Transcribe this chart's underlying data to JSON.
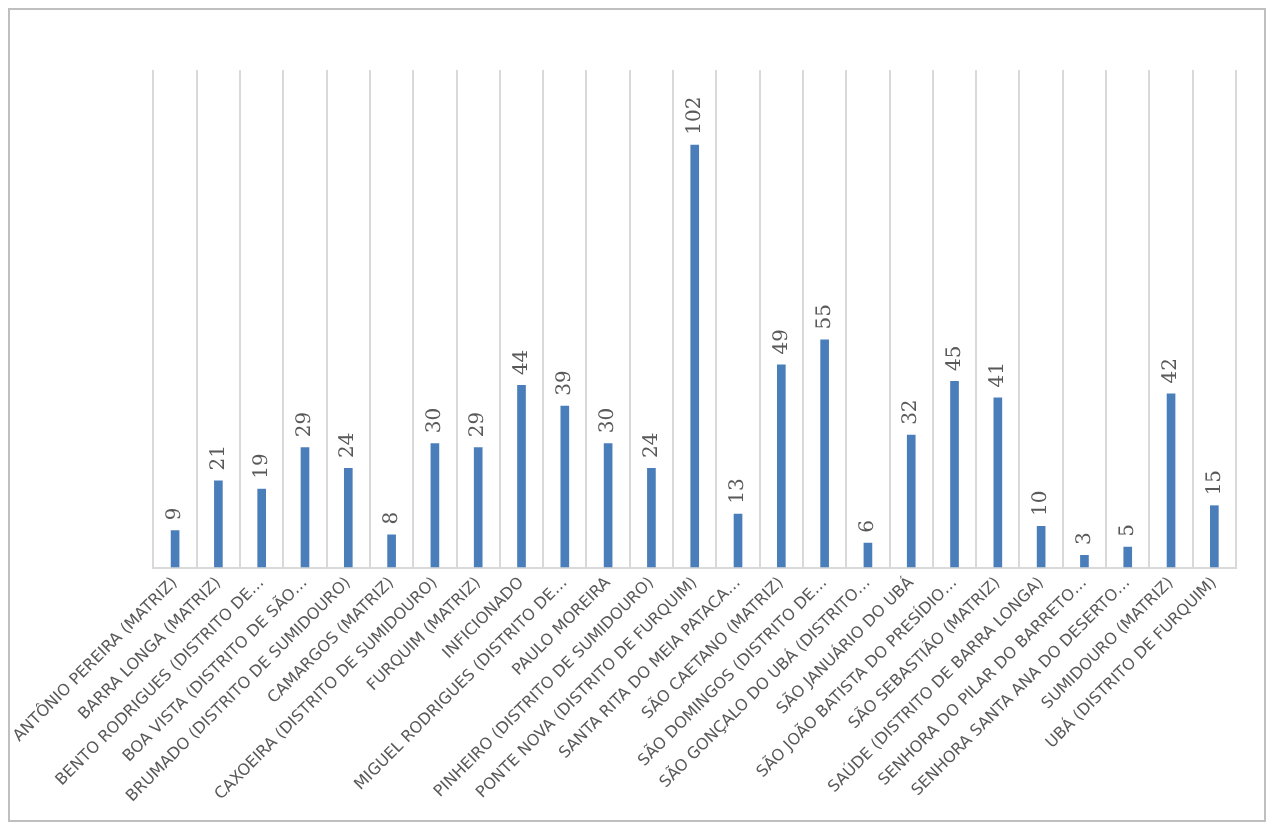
{
  "chart_data": {
    "type": "bar",
    "categories": [
      "ANTÔNIO PEREIRA (MATRIZ)",
      "BARRA LONGA (MATRIZ)",
      "BENTO RODRIGUES (DISTRITO DE…",
      "BOA VISTA (DISTRITO DE SÃO…",
      "BRUMADO (DISTRITO DE SUMIDOURO)",
      "CAMARGOS (MATRIZ)",
      "CAXOEIRA (DISTRITO DE SUMIDOURO)",
      "FURQUIM (MATRIZ)",
      "INFICIONADO",
      "MIGUEL RODRIGUES (DISTRITO DE…",
      "PAULO MOREIRA",
      "PINHEIRO (DISTRITO DE SUMIDOURO)",
      "PONTE NOVA (DISTRITO DE FURQUIM)",
      "SANTA RITA DO MEIA PATACA…",
      "SÃO CAETANO (MATRIZ)",
      "SÃO DOMINGOS (DISTRITO DE…",
      "SÃO GONÇALO DO UBÁ (DISTRITO…",
      "SÃO JANUÁRIO DO UBÁ",
      "SÃO JOÃO BATISTA DO PRESÍDIO…",
      "SÃO SEBASTIÃO (MATRIZ)",
      "SAÚDE (DISTRITO DE BARRA LONGA)",
      "SENHORA DO PILAR DO BARRETO…",
      "SENHORA SANTA ANA DO DESERTO…",
      "SUMIDOURO (MATRIZ)",
      "UBÁ (DISTRITO DE FURQUIM)"
    ],
    "values": [
      9,
      21,
      19,
      29,
      24,
      8,
      30,
      29,
      44,
      39,
      30,
      24,
      102,
      13,
      49,
      55,
      6,
      32,
      45,
      41,
      10,
      3,
      5,
      42,
      15
    ],
    "color": "#4a7ebb",
    "data_labels": true,
    "grid": "x"
  }
}
